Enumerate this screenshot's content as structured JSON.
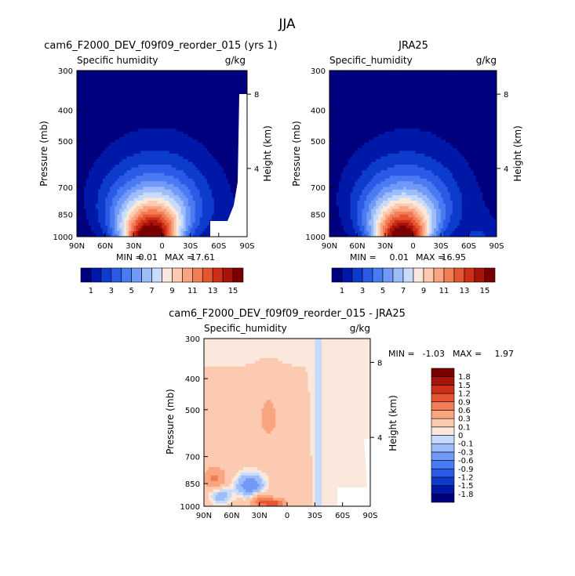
{
  "figure_title": "JJA",
  "colors": {
    "abs_levels": [
      "#00007f",
      "#0018a8",
      "#0d3ccc",
      "#2a5ae6",
      "#4a7bf2",
      "#7199f7",
      "#9cbcfa",
      "#c7dbfc",
      "#fbe8dc",
      "#fccab0",
      "#f9a580",
      "#f27d56",
      "#e55532",
      "#cc2e17",
      "#a8140b",
      "#7a0000"
    ],
    "diff_levels": [
      "#00007f",
      "#0018a8",
      "#0d3ccc",
      "#2a5ae6",
      "#4a7bf2",
      "#7199f7",
      "#9cbcfa",
      "#c7dbfc",
      "#fbe8dc",
      "#fccab0",
      "#f9a580",
      "#f27d56",
      "#e55532",
      "#cc2e17",
      "#a8140b",
      "#7a0000"
    ]
  },
  "chart_data": [
    {
      "type": "heatmap",
      "title": "cam6_F2000_DEV_f09f09_reorder_015 (yrs 1)",
      "subtitle_left": "Specific humidity",
      "units": "g/kg",
      "ylabel": "Pressure (mb)",
      "ylabel_right": "Height (km)",
      "x_ticks": [
        "90N",
        "60N",
        "30N",
        "0",
        "30S",
        "60S",
        "90S"
      ],
      "y_ticks": [
        "300",
        "400",
        "500",
        "700",
        "850",
        "1000"
      ],
      "y_ticks_right": [
        "8",
        "4"
      ],
      "min_label": "MIN =",
      "min_value": "0.01",
      "max_label": "MAX =",
      "max_value": "17.61",
      "colorbar_labels": [
        "1",
        "3",
        "5",
        "7",
        "9",
        "11",
        "13",
        "15"
      ],
      "field_peak": 17.61,
      "masked_lower_right": true
    },
    {
      "type": "heatmap",
      "title": "JRA25",
      "subtitle_left": "Specific_humidity",
      "units": "g/kg",
      "ylabel": "Pressure (mb)",
      "ylabel_right": "Height (km)",
      "x_ticks": [
        "90N",
        "60N",
        "30N",
        "0",
        "30S",
        "60S",
        "90S"
      ],
      "y_ticks": [
        "300",
        "400",
        "500",
        "700",
        "850",
        "1000"
      ],
      "y_ticks_right": [
        "8",
        "4"
      ],
      "min_label": "MIN =",
      "min_value": "0.01",
      "max_label": "MAX =",
      "max_value": "16.95",
      "colorbar_labels": [
        "1",
        "3",
        "5",
        "7",
        "9",
        "11",
        "13",
        "15"
      ],
      "field_peak": 16.95,
      "masked_lower_right": false
    },
    {
      "type": "heatmap",
      "title": "cam6_F2000_DEV_f09f09_reorder_015 - JRA25",
      "subtitle_left": "Specific_humidity",
      "units": "g/kg",
      "ylabel": "Pressure (mb)",
      "ylabel_right": "Height (km)",
      "x_ticks": [
        "90N",
        "60N",
        "30N",
        "0",
        "30S",
        "60S",
        "90S"
      ],
      "y_ticks": [
        "300",
        "400",
        "500",
        "700",
        "850",
        "1000"
      ],
      "y_ticks_right": [
        "8",
        "4"
      ],
      "min_label": "MIN =",
      "min_value": "-1.03",
      "max_label": "MAX =",
      "max_value": "1.97",
      "colorbar_labels": [
        "1.8",
        "1.5",
        "1.2",
        "0.9",
        "0.6",
        "0.3",
        "0.1",
        "0",
        "-0.1",
        "-0.3",
        "-0.6",
        "-0.9",
        "-1.2",
        "-1.5",
        "-1.8"
      ],
      "masked_lower_right": true
    }
  ]
}
